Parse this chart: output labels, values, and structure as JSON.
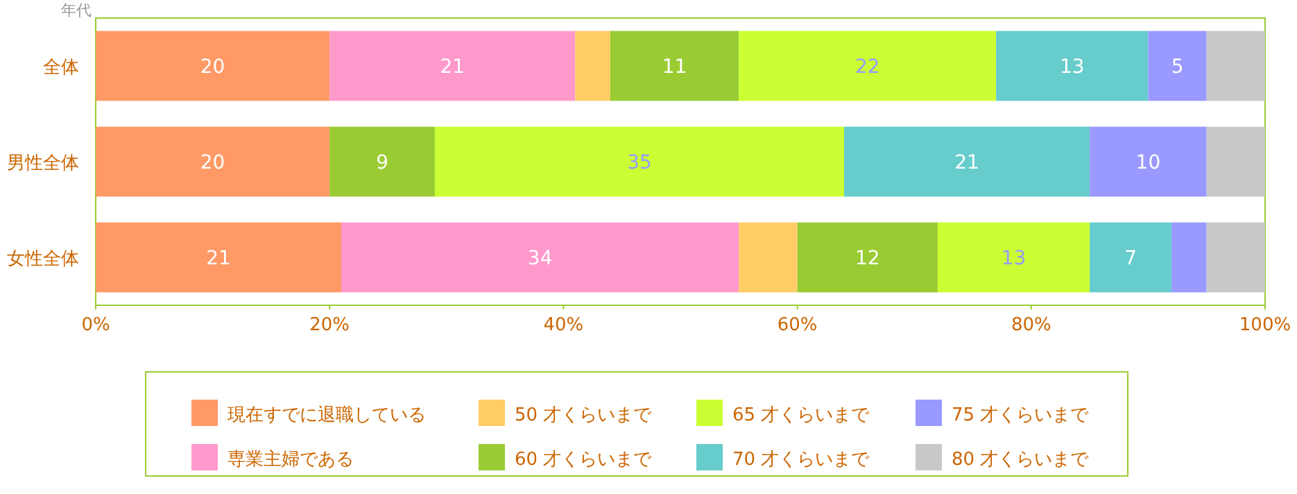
{
  "chart_data": {
    "type": "bar",
    "orientation": "horizontal",
    "stacked": true,
    "ylabel": "年代",
    "categories": [
      "全体",
      "男性全体",
      "女性全体"
    ],
    "xlim": [
      0,
      100
    ],
    "xticks": [
      {
        "value": 0,
        "label": "0%"
      },
      {
        "value": 20,
        "label": "20%"
      },
      {
        "value": 40,
        "label": "40%"
      },
      {
        "value": 60,
        "label": "60%"
      },
      {
        "value": 80,
        "label": "80%"
      },
      {
        "value": 100,
        "label": "100%"
      }
    ],
    "grid": false,
    "legend": "bottom",
    "series": [
      {
        "name": "現在すでに退職している",
        "color": "#ff9966",
        "values": [
          20,
          20,
          21
        ],
        "value_labels": [
          "20",
          "20",
          "21"
        ]
      },
      {
        "name": "専業主婦である",
        "color": "#ff99cc",
        "values": [
          21,
          0,
          34
        ],
        "value_labels": [
          "21",
          null,
          "34"
        ]
      },
      {
        "name": "50 才くらいまで",
        "color": "#ffcc66",
        "values": [
          3,
          0,
          5
        ],
        "value_labels": [
          null,
          null,
          null
        ]
      },
      {
        "name": "60 才くらいまで",
        "color": "#99cc33",
        "values": [
          11,
          9,
          12
        ],
        "value_labels": [
          "11",
          "9",
          "12"
        ]
      },
      {
        "name": "65 才くらいまで",
        "color": "#ccff33",
        "values": [
          22,
          35,
          13
        ],
        "value_labels": [
          "22",
          "35",
          "13"
        ]
      },
      {
        "name": "70 才くらいまで",
        "color": "#66cccc",
        "values": [
          13,
          21,
          7
        ],
        "value_labels": [
          "13",
          "21",
          "7"
        ]
      },
      {
        "name": "75 才くらいまで",
        "color": "#9999ff",
        "values": [
          5,
          10,
          3
        ],
        "value_labels": [
          "5",
          "10",
          null
        ]
      },
      {
        "name": "80 才くらいまで",
        "color": "#c8c8c8",
        "values": [
          5,
          5,
          5
        ],
        "value_labels": [
          null,
          null,
          null
        ]
      }
    ]
  }
}
